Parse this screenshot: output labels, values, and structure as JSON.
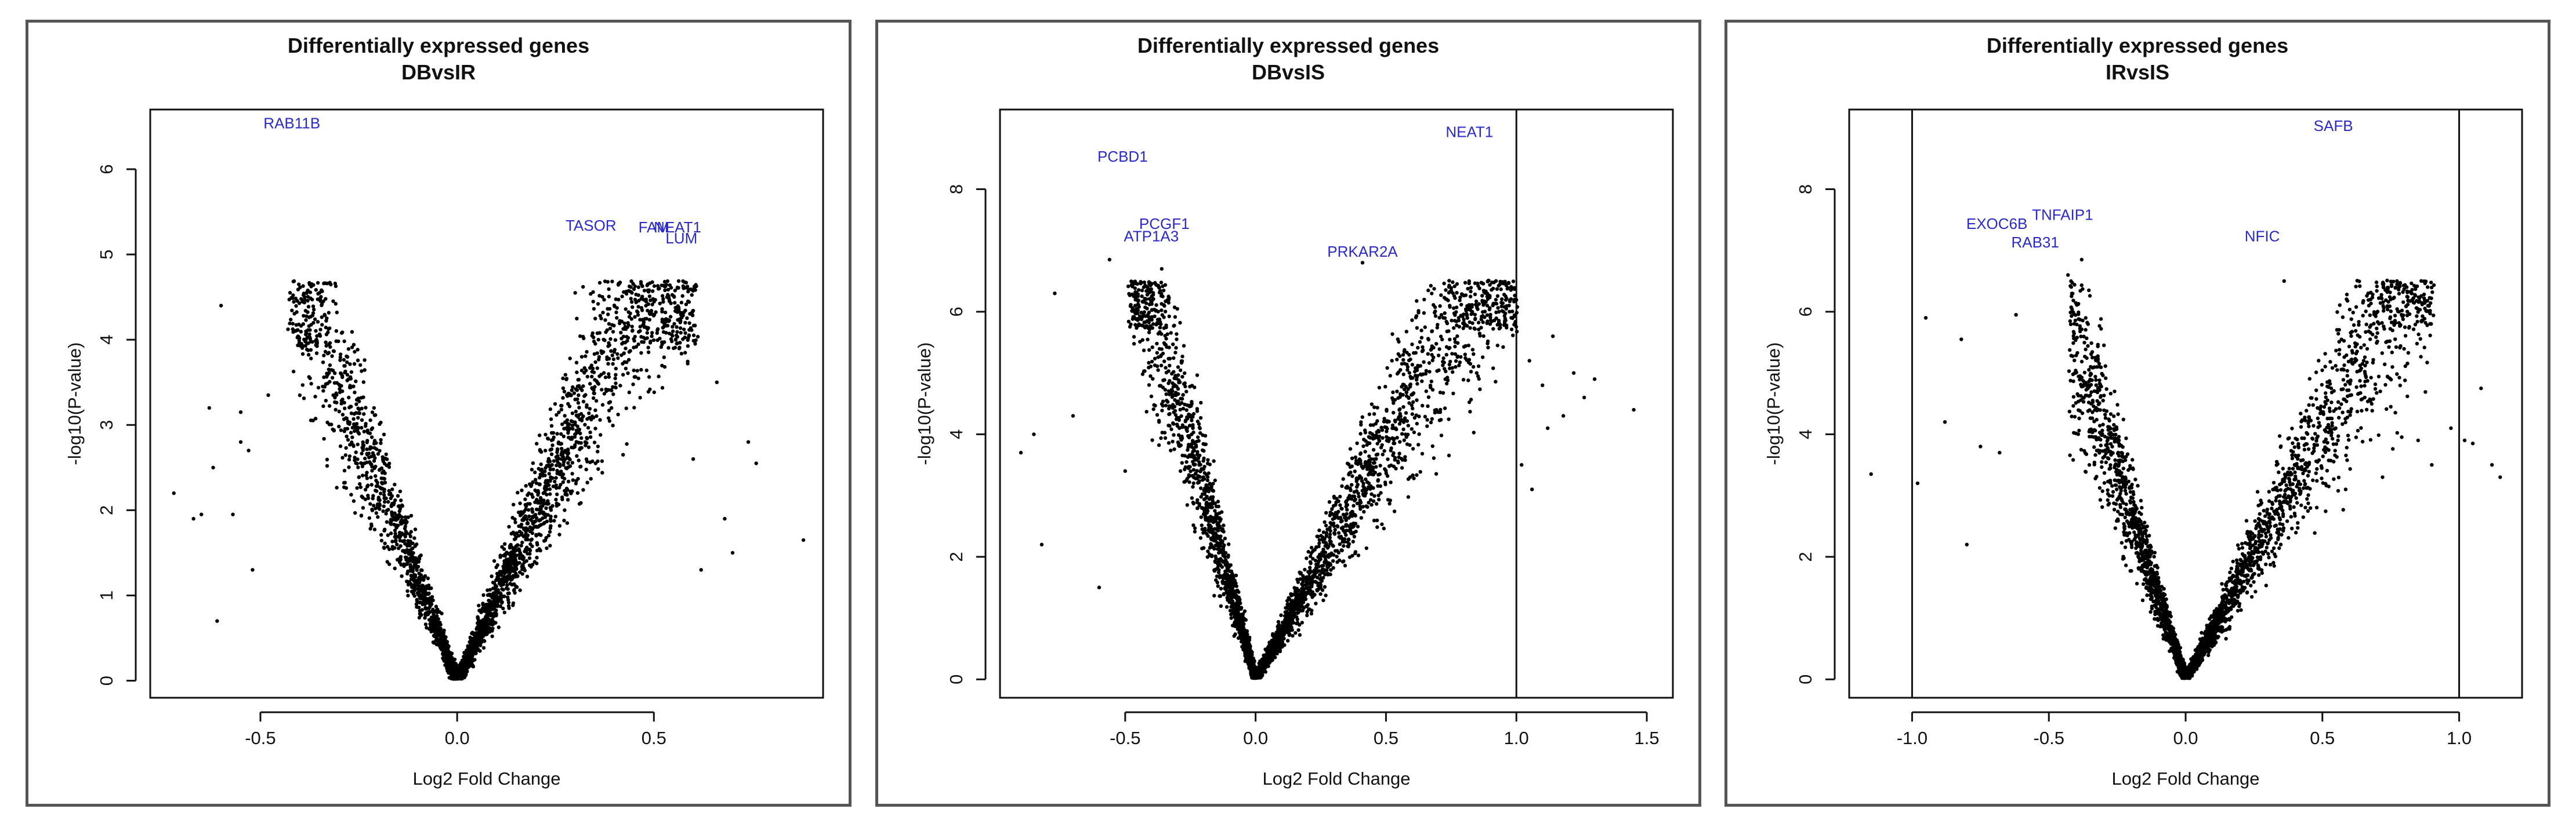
{
  "chart_data": [
    {
      "type": "scatter",
      "title": "Differentially expressed genes",
      "subtitle": "DBvsIR",
      "xlabel": "Log2 Fold Change",
      "ylabel": "-log10(P-value)",
      "xlim": [
        -0.78,
        0.93
      ],
      "ylim": [
        -0.2,
        6.7
      ],
      "xticks": [
        -0.5,
        0.0,
        0.5
      ],
      "xtick_labels": [
        "-0.5",
        "0.0",
        "0.5"
      ],
      "yticks": [
        0,
        1,
        2,
        3,
        4,
        5,
        6
      ],
      "vlines": [],
      "grid": false,
      "marker_color": "#000000",
      "label_color": "#2a2acb",
      "volcano": {
        "left_slope": 14.5,
        "right_slope": 12.2,
        "left_max_x": 0.42,
        "right_max_x": 0.6,
        "n_left": 1400,
        "n_right": 1900
      },
      "outliers": [
        {
          "x": -0.72,
          "y": 2.2
        },
        {
          "x": -0.67,
          "y": 1.9
        },
        {
          "x": -0.65,
          "y": 1.95
        },
        {
          "x": -0.63,
          "y": 3.2
        },
        {
          "x": -0.62,
          "y": 2.5
        },
        {
          "x": -0.61,
          "y": 0.7
        },
        {
          "x": -0.6,
          "y": 4.4
        },
        {
          "x": -0.57,
          "y": 1.95
        },
        {
          "x": -0.55,
          "y": 2.8
        },
        {
          "x": -0.55,
          "y": 3.15
        },
        {
          "x": -0.53,
          "y": 2.7
        },
        {
          "x": -0.52,
          "y": 1.3
        },
        {
          "x": -0.48,
          "y": 3.35
        },
        {
          "x": -0.33,
          "y": 4.66
        },
        {
          "x": -0.31,
          "y": 4.66
        },
        {
          "x": -0.34,
          "y": 4.45
        },
        {
          "x": 0.32,
          "y": 4.62
        },
        {
          "x": 0.3,
          "y": 4.55
        },
        {
          "x": 0.41,
          "y": 4.47
        },
        {
          "x": 0.49,
          "y": 4.3
        },
        {
          "x": 0.55,
          "y": 3.9
        },
        {
          "x": 0.6,
          "y": 2.6
        },
        {
          "x": 0.66,
          "y": 3.5
        },
        {
          "x": 0.68,
          "y": 1.9
        },
        {
          "x": 0.74,
          "y": 2.8
        },
        {
          "x": 0.76,
          "y": 2.55
        },
        {
          "x": 0.88,
          "y": 1.65
        },
        {
          "x": 0.7,
          "y": 1.5
        },
        {
          "x": 0.62,
          "y": 1.3
        }
      ],
      "labels": [
        {
          "text": "RAB11B",
          "x": -0.42,
          "y": 6.48
        },
        {
          "text": "TASOR",
          "x": 0.34,
          "y": 5.28
        },
        {
          "text": "FAM",
          "x": 0.5,
          "y": 5.26
        },
        {
          "text": "NEAT1",
          "x": 0.56,
          "y": 5.26
        },
        {
          "text": "LUM",
          "x": 0.57,
          "y": 5.13
        }
      ]
    },
    {
      "type": "scatter",
      "title": "Differentially expressed genes",
      "subtitle": "DBvsIS",
      "xlabel": "Log2 Fold Change",
      "ylabel": "-log10(P-value)",
      "xlim": [
        -0.98,
        1.6
      ],
      "ylim": [
        -0.3,
        9.3
      ],
      "xticks": [
        -0.5,
        0.0,
        0.5,
        1.0,
        1.5
      ],
      "xtick_labels": [
        "-0.5",
        "0.0",
        "0.5",
        "1.0",
        "1.5"
      ],
      "yticks": [
        0,
        2,
        4,
        6,
        8
      ],
      "vlines": [
        1.0
      ],
      "grid": false,
      "marker_color": "#000000",
      "label_color": "#2a2acb",
      "volcano": {
        "left_slope": 19.0,
        "right_slope": 9.5,
        "left_max_x": 0.48,
        "right_max_x": 1.0,
        "n_left": 1500,
        "n_right": 1900
      },
      "outliers": [
        {
          "x": -0.9,
          "y": 3.7
        },
        {
          "x": -0.85,
          "y": 4.0
        },
        {
          "x": -0.82,
          "y": 2.2
        },
        {
          "x": -0.77,
          "y": 6.3
        },
        {
          "x": -0.7,
          "y": 4.3
        },
        {
          "x": -0.6,
          "y": 1.5
        },
        {
          "x": -0.56,
          "y": 6.85
        },
        {
          "x": -0.5,
          "y": 3.4
        },
        {
          "x": -0.36,
          "y": 6.7
        },
        {
          "x": 1.05,
          "y": 5.2
        },
        {
          "x": 1.1,
          "y": 4.8
        },
        {
          "x": 1.14,
          "y": 5.6
        },
        {
          "x": 1.18,
          "y": 4.3
        },
        {
          "x": 1.22,
          "y": 5.0
        },
        {
          "x": 1.26,
          "y": 4.6
        },
        {
          "x": 1.3,
          "y": 4.9
        },
        {
          "x": 1.45,
          "y": 4.4
        },
        {
          "x": 1.02,
          "y": 3.5
        },
        {
          "x": 1.06,
          "y": 3.1
        },
        {
          "x": 1.12,
          "y": 4.1
        },
        {
          "x": 0.41,
          "y": 6.8
        },
        {
          "x": 0.95,
          "y": 6.0
        }
      ],
      "labels": [
        {
          "text": "PCBD1",
          "x": -0.51,
          "y": 8.45
        },
        {
          "text": "NEAT1",
          "x": 0.82,
          "y": 8.85
        },
        {
          "text": "PCGF1",
          "x": -0.35,
          "y": 7.35
        },
        {
          "text": "ATP1A3",
          "x": -0.4,
          "y": 7.15
        },
        {
          "text": "PRKAR2A",
          "x": 0.41,
          "y": 6.9
        }
      ]
    },
    {
      "type": "scatter",
      "title": "Differentially expressed genes",
      "subtitle": "IRvsIS",
      "xlabel": "Log2 Fold Change",
      "ylabel": "-log10(P-value)",
      "xlim": [
        -1.23,
        1.23
      ],
      "ylim": [
        -0.3,
        9.3
      ],
      "xticks": [
        -1.0,
        -0.5,
        0.0,
        0.5,
        1.0
      ],
      "xtick_labels": [
        "-1.0",
        "-0.5",
        "0.0",
        "0.5",
        "1.0"
      ],
      "yticks": [
        0,
        2,
        4,
        6,
        8
      ],
      "vlines": [
        -1.0,
        1.0
      ],
      "grid": false,
      "marker_color": "#000000",
      "label_color": "#2a2acb",
      "volcano": {
        "left_slope": 16.5,
        "right_slope": 10.0,
        "left_max_x": 0.42,
        "right_max_x": 0.9,
        "n_left": 1450,
        "n_right": 1700
      },
      "outliers": [
        {
          "x": -1.15,
          "y": 3.35
        },
        {
          "x": -0.98,
          "y": 3.2
        },
        {
          "x": -0.95,
          "y": 5.9
        },
        {
          "x": -0.88,
          "y": 4.2
        },
        {
          "x": -0.82,
          "y": 5.55
        },
        {
          "x": -0.8,
          "y": 2.2
        },
        {
          "x": -0.75,
          "y": 3.8
        },
        {
          "x": -0.68,
          "y": 3.7
        },
        {
          "x": -0.62,
          "y": 5.95
        },
        {
          "x": -0.43,
          "y": 6.6
        },
        {
          "x": -0.38,
          "y": 6.85
        },
        {
          "x": 0.36,
          "y": 6.5
        },
        {
          "x": 0.67,
          "y": 6.1
        },
        {
          "x": 0.85,
          "y": 3.9
        },
        {
          "x": 0.9,
          "y": 3.5
        },
        {
          "x": 0.97,
          "y": 4.1
        },
        {
          "x": 1.02,
          "y": 3.9
        },
        {
          "x": 1.05,
          "y": 3.85
        },
        {
          "x": 1.08,
          "y": 4.75
        },
        {
          "x": 1.12,
          "y": 3.5
        },
        {
          "x": 1.15,
          "y": 3.3
        },
        {
          "x": 0.75,
          "y": 4.45
        },
        {
          "x": 0.72,
          "y": 3.3
        }
      ],
      "labels": [
        {
          "text": "SAFB",
          "x": 0.54,
          "y": 8.95
        },
        {
          "text": "TNFAIP1",
          "x": -0.45,
          "y": 7.5
        },
        {
          "text": "EXOC6B",
          "x": -0.69,
          "y": 7.35
        },
        {
          "text": "RAB31",
          "x": -0.55,
          "y": 7.05
        },
        {
          "text": "NFIC",
          "x": 0.28,
          "y": 7.15
        }
      ]
    }
  ]
}
